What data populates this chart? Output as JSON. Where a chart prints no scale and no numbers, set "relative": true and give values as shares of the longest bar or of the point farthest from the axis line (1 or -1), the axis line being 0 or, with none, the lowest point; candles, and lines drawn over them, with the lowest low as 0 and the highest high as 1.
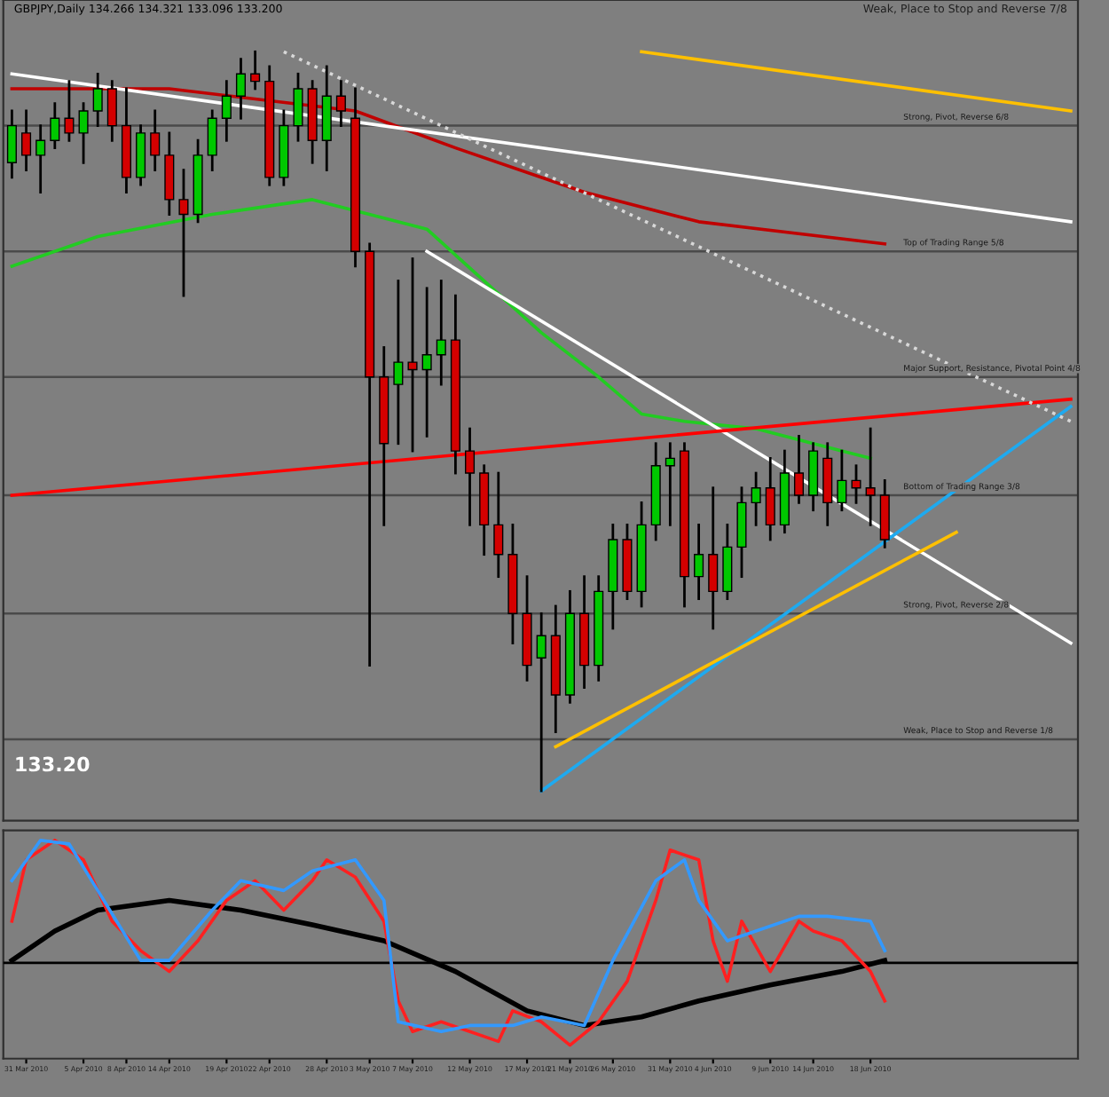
{
  "chart_data": [
    {
      "type": "candlestick",
      "title": "GBPJPY,Daily 134.266 134.321 133.096 133.200",
      "relative": true,
      "tick_labels": false,
      "grid": false,
      "categories": [
        null,
        null,
        null,
        null,
        null,
        null,
        null,
        null,
        null,
        null,
        null,
        null,
        null,
        null,
        null,
        null,
        null,
        null,
        null,
        null,
        null,
        null,
        null,
        null,
        null,
        null,
        null,
        null,
        null,
        null,
        null,
        null,
        null,
        null,
        null,
        null,
        null,
        null,
        null,
        null,
        null,
        null,
        null,
        null,
        null,
        null,
        null,
        null,
        null,
        null,
        null,
        null,
        null,
        null,
        null,
        null,
        null,
        null,
        null,
        null,
        null,
        null,
        null,
        null,
        null,
        null,
        null,
        null,
        null,
        null,
        null,
        null,
        null,
        null,
        null
      ],
      "ohlc": [
        [
          0.85,
          0.92,
          0.83,
          0.9
        ],
        [
          0.89,
          0.92,
          0.84,
          0.86
        ],
        [
          0.86,
          0.9,
          0.81,
          0.88
        ],
        [
          0.88,
          0.93,
          0.87,
          0.91
        ],
        [
          0.91,
          0.96,
          0.88,
          0.89
        ],
        [
          0.89,
          0.93,
          0.85,
          0.92
        ],
        [
          0.92,
          0.97,
          0.9,
          0.95
        ],
        [
          0.95,
          0.96,
          0.88,
          0.9
        ],
        [
          0.9,
          0.95,
          0.81,
          0.83
        ],
        [
          0.83,
          0.9,
          0.82,
          0.89
        ],
        [
          0.89,
          0.92,
          0.84,
          0.86
        ],
        [
          0.86,
          0.89,
          0.78,
          0.8
        ],
        [
          0.8,
          0.84,
          0.67,
          0.78
        ],
        [
          0.78,
          0.88,
          0.77,
          0.86
        ],
        [
          0.86,
          0.92,
          0.84,
          0.91
        ],
        [
          0.91,
          0.96,
          0.88,
          0.94
        ],
        [
          0.94,
          0.99,
          0.91,
          0.97
        ],
        [
          0.97,
          1.0,
          0.95,
          0.96
        ],
        [
          0.96,
          0.98,
          0.82,
          0.83
        ],
        [
          0.83,
          0.92,
          0.82,
          0.9
        ],
        [
          0.9,
          0.97,
          0.88,
          0.95
        ],
        [
          0.95,
          0.96,
          0.85,
          0.88
        ],
        [
          0.88,
          0.98,
          0.84,
          0.94
        ],
        [
          0.94,
          0.96,
          0.9,
          0.92
        ],
        [
          0.91,
          0.95,
          0.71,
          0.73
        ],
        [
          0.73,
          0.74,
          0.17,
          0.56
        ],
        [
          0.56,
          0.6,
          0.36,
          0.47
        ],
        [
          0.55,
          0.69,
          0.47,
          0.58
        ],
        [
          0.58,
          0.72,
          0.46,
          0.57
        ],
        [
          0.57,
          0.68,
          0.48,
          0.59
        ],
        [
          0.59,
          0.69,
          0.55,
          0.61
        ],
        [
          0.61,
          0.67,
          0.43,
          0.46
        ],
        [
          0.46,
          0.49,
          0.36,
          0.43
        ],
        [
          0.43,
          0.44,
          0.32,
          0.36
        ],
        [
          0.36,
          0.43,
          0.29,
          0.32
        ],
        [
          0.32,
          0.36,
          0.2,
          0.24
        ],
        [
          0.24,
          0.29,
          0.15,
          0.17
        ],
        [
          0.18,
          0.24,
          0.0,
          0.21
        ],
        [
          0.21,
          0.25,
          0.08,
          0.13
        ],
        [
          0.13,
          0.27,
          0.12,
          0.24
        ],
        [
          0.24,
          0.29,
          0.14,
          0.17
        ],
        [
          0.17,
          0.29,
          0.15,
          0.27
        ],
        [
          0.27,
          0.36,
          0.22,
          0.34
        ],
        [
          0.34,
          0.36,
          0.26,
          0.27
        ],
        [
          0.27,
          0.39,
          0.25,
          0.36
        ],
        [
          0.36,
          0.47,
          0.34,
          0.44
        ],
        [
          0.44,
          0.47,
          0.36,
          0.45
        ],
        [
          0.46,
          0.47,
          0.25,
          0.29
        ],
        [
          0.29,
          0.36,
          0.26,
          0.32
        ],
        [
          0.32,
          0.41,
          0.22,
          0.27
        ],
        [
          0.27,
          0.36,
          0.26,
          0.33
        ],
        [
          0.33,
          0.41,
          0.29,
          0.39
        ],
        [
          0.39,
          0.43,
          0.36,
          0.41
        ],
        [
          0.41,
          0.45,
          0.34,
          0.36
        ],
        [
          0.36,
          0.46,
          0.35,
          0.43
        ],
        [
          0.43,
          0.48,
          0.39,
          0.4
        ],
        [
          0.4,
          0.47,
          0.38,
          0.46
        ],
        [
          0.45,
          0.47,
          0.36,
          0.39
        ],
        [
          0.39,
          0.46,
          0.38,
          0.42
        ],
        [
          0.42,
          0.44,
          0.39,
          0.41
        ],
        [
          0.41,
          0.49,
          0.36,
          0.4
        ],
        [
          0.4,
          0.42,
          0.33,
          0.34
        ],
        null,
        null,
        null,
        null,
        null,
        null,
        null,
        null,
        null,
        null,
        null,
        null,
        null
      ],
      "colors": [
        "#00c800",
        "#d40000",
        "#00c800",
        "#00c800",
        "#d40000",
        "#00c800",
        "#00c800",
        "#d40000",
        "#d40000",
        "#00c800",
        "#d40000",
        "#d40000",
        "#d40000",
        "#00c800",
        "#00c800",
        "#00c800",
        "#00c800",
        "#d40000",
        "#d40000",
        "#00c800",
        "#00c800",
        "#d40000",
        "#00c800",
        "#d40000",
        "#d40000",
        "#d40000",
        "#d40000",
        "#00c800",
        "#d40000",
        "#00c800",
        "#00c800",
        "#d40000",
        "#d40000",
        "#d40000",
        "#d40000",
        "#d40000",
        "#d40000",
        "#00c800",
        "#d40000",
        "#00c800",
        "#d40000",
        "#00c800",
        "#00c800",
        "#d40000",
        "#00c800",
        "#00c800",
        "#00c800",
        "#d40000",
        "#00c800",
        "#d40000",
        "#00c800",
        "#00c800",
        "#00c800",
        "#d40000",
        "#00c800",
        "#d40000",
        "#00c800",
        "#d40000",
        "#00c800",
        "#d40000",
        "#d40000",
        "#d40000",
        null,
        null,
        null,
        null,
        null,
        null,
        null,
        null,
        null,
        null,
        null,
        null,
        null
      ],
      "series": [
        {
          "type": "line",
          "color": "#c00000",
          "values": [
            0.95,
            null,
            null,
            null,
            null,
            null,
            null,
            null,
            null,
            null,
            null,
            0.95,
            null,
            null,
            null,
            null,
            null,
            null,
            null,
            null,
            null,
            null,
            null,
            null,
            0.92,
            null,
            null,
            null,
            null,
            null,
            null,
            0.87,
            null,
            null,
            null,
            null,
            null,
            null,
            null,
            null,
            0.81,
            null,
            null,
            null,
            null,
            null,
            null,
            null,
            0.77,
            null,
            null,
            null,
            null,
            null,
            null,
            null,
            null,
            null,
            null,
            null,
            null,
            0.74,
            null,
            null,
            null,
            null,
            null,
            null,
            null,
            null,
            null,
            null,
            null,
            null,
            null
          ]
        },
        {
          "type": "line",
          "color": "#22cc22",
          "values": [
            0.71,
            null,
            null,
            null,
            null,
            null,
            0.75,
            null,
            null,
            null,
            null,
            null,
            null,
            null,
            0.78,
            null,
            null,
            null,
            null,
            null,
            null,
            0.8,
            null,
            null,
            null,
            null,
            null,
            null,
            null,
            0.76,
            null,
            null,
            null,
            null,
            null,
            null,
            null,
            0.62,
            null,
            null,
            null,
            0.56,
            null,
            null,
            0.51,
            null,
            null,
            0.5,
            null,
            null,
            null,
            null,
            0.49,
            null,
            null,
            null,
            0.47,
            null,
            null,
            null,
            0.45,
            null,
            null,
            null,
            null,
            null,
            null,
            null,
            null,
            null,
            null,
            null,
            null,
            null,
            null
          ]
        },
        {
          "type": "line",
          "color": "#ffffff",
          "values": [
            0.97,
            null,
            null,
            null,
            null,
            null,
            null,
            null,
            null,
            null,
            null,
            null,
            null,
            null,
            null,
            null,
            null,
            null,
            null,
            null,
            null,
            null,
            null,
            null,
            null,
            null,
            null,
            null,
            null,
            null,
            null,
            null,
            null,
            null,
            null,
            null,
            null,
            null,
            null,
            null,
            null,
            null,
            null,
            null,
            null,
            null,
            null,
            null,
            null,
            null,
            null,
            null,
            null,
            null,
            null,
            null,
            null,
            null,
            null,
            null,
            null,
            null,
            null,
            null,
            null,
            null,
            null,
            null,
            null,
            null,
            null,
            null,
            null,
            null,
            0.77
          ]
        },
        {
          "type": "line",
          "color": "#ffffff",
          "values": [
            null,
            null,
            null,
            null,
            null,
            null,
            null,
            null,
            null,
            null,
            null,
            null,
            null,
            null,
            null,
            null,
            null,
            null,
            null,
            null,
            null,
            null,
            null,
            null,
            null,
            null,
            null,
            null,
            null,
            0.73,
            null,
            null,
            null,
            null,
            null,
            null,
            null,
            null,
            null,
            null,
            null,
            null,
            null,
            null,
            null,
            null,
            null,
            null,
            null,
            null,
            null,
            null,
            null,
            null,
            null,
            null,
            null,
            null,
            null,
            null,
            null,
            null,
            null,
            null,
            null,
            null,
            null,
            null,
            null,
            null,
            null,
            null,
            null,
            null,
            0.2
          ]
        },
        {
          "type": "line",
          "color": "#ff0000",
          "values": [
            0.4,
            null,
            null,
            null,
            null,
            null,
            null,
            null,
            null,
            null,
            null,
            null,
            null,
            null,
            null,
            null,
            null,
            null,
            null,
            null,
            null,
            null,
            null,
            null,
            null,
            null,
            null,
            null,
            null,
            null,
            null,
            null,
            null,
            null,
            null,
            null,
            null,
            null,
            null,
            null,
            null,
            null,
            null,
            null,
            null,
            null,
            null,
            null,
            null,
            null,
            null,
            null,
            null,
            null,
            null,
            null,
            null,
            null,
            null,
            null,
            null,
            null,
            null,
            null,
            null,
            null,
            null,
            null,
            null,
            null,
            null,
            null,
            null,
            null,
            0.53
          ]
        },
        {
          "type": "line",
          "color": "#1eaaf0",
          "values": [
            null,
            null,
            null,
            null,
            null,
            null,
            null,
            null,
            null,
            null,
            null,
            null,
            null,
            null,
            null,
            null,
            null,
            null,
            null,
            null,
            null,
            null,
            null,
            null,
            null,
            null,
            null,
            null,
            null,
            null,
            null,
            null,
            null,
            null,
            null,
            null,
            null,
            0.0,
            null,
            null,
            null,
            null,
            null,
            null,
            null,
            null,
            null,
            null,
            null,
            null,
            null,
            null,
            null,
            null,
            null,
            null,
            null,
            null,
            null,
            null,
            null,
            null,
            null,
            null,
            null,
            null,
            null,
            null,
            null,
            null,
            null,
            null,
            null,
            null,
            0.52
          ]
        },
        {
          "type": "line",
          "color": "#ffc000",
          "values": [
            null,
            null,
            null,
            null,
            null,
            null,
            null,
            null,
            null,
            null,
            null,
            null,
            null,
            null,
            null,
            null,
            null,
            null,
            null,
            null,
            null,
            null,
            null,
            null,
            null,
            null,
            null,
            null,
            null,
            null,
            null,
            null,
            null,
            null,
            null,
            null,
            null,
            null,
            0.06,
            null,
            null,
            null,
            null,
            null,
            null,
            null,
            null,
            null,
            null,
            null,
            null,
            null,
            null,
            null,
            null,
            null,
            null,
            null,
            null,
            null,
            null,
            null,
            null,
            null,
            null,
            null,
            0.35,
            null,
            null,
            null,
            null,
            null,
            null,
            null,
            null
          ]
        },
        {
          "type": "line",
          "color": "#ffc000",
          "values": [
            null,
            null,
            null,
            null,
            null,
            null,
            null,
            null,
            null,
            null,
            null,
            null,
            null,
            null,
            null,
            null,
            null,
            null,
            null,
            null,
            null,
            null,
            null,
            null,
            null,
            null,
            null,
            null,
            null,
            null,
            null,
            null,
            null,
            null,
            null,
            null,
            null,
            null,
            null,
            null,
            null,
            null,
            null,
            null,
            1.0,
            null,
            null,
            null,
            null,
            null,
            null,
            null,
            null,
            null,
            null,
            null,
            null,
            null,
            null,
            null,
            null,
            null,
            null,
            null,
            null,
            null,
            null,
            null,
            null,
            null,
            null,
            null,
            null,
            null,
            0.92
          ]
        },
        {
          "type": "line",
          "color": "#d8d8d8",
          "line_style": "dotted",
          "values": [
            null,
            null,
            null,
            null,
            null,
            null,
            null,
            null,
            null,
            null,
            null,
            null,
            null,
            null,
            null,
            null,
            null,
            null,
            null,
            1.0,
            null,
            null,
            null,
            null,
            null,
            null,
            null,
            null,
            null,
            null,
            null,
            null,
            null,
            null,
            null,
            null,
            null,
            null,
            null,
            null,
            null,
            null,
            null,
            null,
            null,
            null,
            null,
            null,
            null,
            null,
            null,
            null,
            null,
            null,
            null,
            null,
            null,
            null,
            null,
            null,
            null,
            null,
            null,
            null,
            null,
            null,
            null,
            null,
            null,
            null,
            null,
            null,
            null,
            null,
            0.5
          ]
        }
      ],
      "ref_lines": [
        {
          "axis": "y",
          "value": 0.9,
          "label": "Strong, Pivot, Reverse 6/8",
          "color": "#4a4a4a"
        },
        {
          "axis": "y",
          "value": 0.73,
          "label": "Top of Trading Range 5/8",
          "color": "#4a4a4a"
        },
        {
          "axis": "y",
          "value": 0.56,
          "label": "Major Support, Resistance, Pivotal Point 4/8",
          "color": "#4a4a4a"
        },
        {
          "axis": "y",
          "value": 0.4,
          "label": "Bottom of Trading Range 3/8",
          "color": "#4a4a4a"
        },
        {
          "axis": "y",
          "value": 0.24,
          "label": "Strong, Pivot, Reverse 2/8",
          "color": "#4a4a4a"
        },
        {
          "axis": "y",
          "value": 0.07,
          "label": "Weak, Place to Stop and Reverse 1/8",
          "color": "#4a4a4a"
        }
      ],
      "annotations": [
        "Weak, Place to Stop and Reverse 7/8",
        "133.20"
      ]
    },
    {
      "type": "line",
      "relative": true,
      "grid": false,
      "tick_labels": "x",
      "categories": [
        null,
        "31 Mar 2010",
        null,
        null,
        null,
        "5 Apr 2010",
        null,
        null,
        "8 Apr 2010",
        null,
        null,
        "14 Apr 2010",
        null,
        null,
        null,
        "19 Apr 2010",
        null,
        null,
        "22 Apr 2010",
        null,
        null,
        null,
        "28 Apr 2010",
        null,
        null,
        "3 May 2010",
        null,
        null,
        "7 May 2010",
        null,
        null,
        null,
        "12 May 2010",
        null,
        null,
        null,
        "17 May 2010",
        null,
        null,
        "21 May 2010",
        null,
        null,
        "26 May 2010",
        null,
        null,
        null,
        "31 May 2010",
        null,
        null,
        "4 Jun 2010",
        null,
        null,
        null,
        "9 Jun 2010",
        null,
        null,
        "14 Jun 2010",
        null,
        null,
        null,
        "18 Jun 2010",
        null,
        null,
        null,
        null,
        null,
        null,
        null,
        null,
        null,
        null,
        null,
        null,
        null,
        null
      ],
      "series": [
        {
          "type": "line",
          "color": "#000000",
          "values": [
            0.02,
            null,
            null,
            0.26,
            null,
            null,
            0.43,
            null,
            null,
            null,
            null,
            0.51,
            null,
            null,
            null,
            null,
            0.43,
            null,
            null,
            null,
            null,
            0.31,
            null,
            null,
            null,
            null,
            0.18,
            null,
            null,
            null,
            null,
            -0.07,
            null,
            null,
            null,
            null,
            -0.39,
            null,
            null,
            null,
            -0.51,
            null,
            null,
            null,
            -0.44,
            null,
            null,
            null,
            -0.31,
            null,
            null,
            null,
            null,
            -0.18,
            null,
            null,
            null,
            null,
            -0.07,
            null,
            null,
            0.02,
            null,
            null,
            null,
            null,
            null,
            null,
            null,
            null,
            null,
            null,
            null,
            null,
            null
          ]
        },
        {
          "type": "line",
          "color": "#ff2020",
          "values": [
            0.34,
            0.84,
            null,
            1.0,
            null,
            0.84,
            null,
            0.34,
            null,
            0.1,
            null,
            -0.07,
            null,
            0.18,
            null,
            0.51,
            null,
            0.67,
            null,
            0.43,
            null,
            0.67,
            0.84,
            null,
            0.7,
            null,
            0.34,
            -0.31,
            -0.56,
            null,
            -0.48,
            null,
            -0.56,
            null,
            -0.64,
            -0.39,
            null,
            -0.48,
            null,
            -0.67,
            null,
            -0.48,
            null,
            -0.15,
            null,
            0.51,
            0.92,
            null,
            0.84,
            0.18,
            -0.15,
            0.34,
            null,
            -0.07,
            null,
            0.34,
            0.26,
            null,
            0.18,
            null,
            -0.07,
            -0.31,
            null,
            null,
            null,
            null,
            null,
            null,
            null,
            null,
            null,
            null,
            null,
            null,
            null
          ]
        },
        {
          "type": "line",
          "color": "#3399ff",
          "values": [
            0.67,
            null,
            1.0,
            null,
            0.97,
            null,
            0.59,
            null,
            null,
            0.02,
            null,
            0.02,
            null,
            null,
            0.43,
            null,
            0.67,
            null,
            null,
            0.59,
            null,
            0.75,
            null,
            null,
            0.84,
            null,
            0.51,
            -0.48,
            null,
            null,
            -0.56,
            null,
            -0.51,
            null,
            null,
            -0.51,
            null,
            -0.44,
            null,
            null,
            -0.51,
            null,
            0.02,
            null,
            null,
            0.67,
            null,
            0.84,
            0.51,
            null,
            0.18,
            null,
            0.26,
            null,
            null,
            0.38,
            null,
            0.38,
            null,
            null,
            0.34,
            0.1,
            null,
            null,
            null,
            null,
            null,
            null,
            null,
            null,
            null,
            null,
            null,
            null,
            null
          ]
        }
      ]
    }
  ]
}
